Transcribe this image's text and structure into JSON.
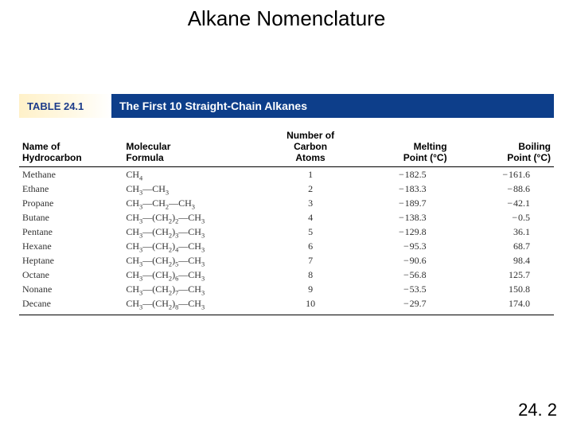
{
  "slide": {
    "title": "Alkane Nomenclature",
    "page_number": "24. 2"
  },
  "table": {
    "label": "TABLE 24.1",
    "caption": "The First 10 Straight-Chain Alkanes",
    "colors": {
      "banner_bg": "#0d3e8a",
      "banner_text": "#ffffff",
      "tab_gradient_start": "#fff1c9",
      "tab_gradient_end": "#ffffff",
      "tab_text": "#1b3b8a",
      "body_text": "#2f2f2f",
      "rule": "#000000",
      "page_bg": "#ffffff"
    },
    "fonts": {
      "heading_family": "Arial",
      "body_family": "Times New Roman",
      "heading_size_pt": 12,
      "body_size_pt": 12,
      "title_size_pt": 20
    },
    "columns": [
      {
        "key": "name",
        "header": "Name of\nHydrocarbon",
        "align": "left"
      },
      {
        "key": "formula",
        "header": "Molecular\nFormula",
        "align": "left"
      },
      {
        "key": "carbons",
        "header": "Number of\nCarbon\nAtoms",
        "align": "center"
      },
      {
        "key": "mp",
        "header": "Melting\nPoint (°C)",
        "align": "right"
      },
      {
        "key": "bp",
        "header": "Boiling\nPoint (°C)",
        "align": "right"
      }
    ],
    "rows": [
      {
        "name": "Methane",
        "formula": "CH4",
        "carbons": 1,
        "mp": -182.5,
        "bp": -161.6
      },
      {
        "name": "Ethane",
        "formula": "CH3—CH3",
        "carbons": 2,
        "mp": -183.3,
        "bp": -88.6
      },
      {
        "name": "Propane",
        "formula": "CH3—CH2—CH3",
        "carbons": 3,
        "mp": -189.7,
        "bp": -42.1
      },
      {
        "name": "Butane",
        "formula": "CH3—(CH2)2—CH3",
        "carbons": 4,
        "mp": -138.3,
        "bp": -0.5
      },
      {
        "name": "Pentane",
        "formula": "CH3—(CH2)3—CH3",
        "carbons": 5,
        "mp": -129.8,
        "bp": 36.1
      },
      {
        "name": "Hexane",
        "formula": "CH3—(CH2)4—CH3",
        "carbons": 6,
        "mp": -95.3,
        "bp": 68.7
      },
      {
        "name": "Heptane",
        "formula": "CH3—(CH2)5—CH3",
        "carbons": 7,
        "mp": -90.6,
        "bp": 98.4
      },
      {
        "name": "Octane",
        "formula": "CH3—(CH2)6—CH3",
        "carbons": 8,
        "mp": -56.8,
        "bp": 125.7
      },
      {
        "name": "Nonane",
        "formula": "CH3—(CH2)7—CH3",
        "carbons": 9,
        "mp": -53.5,
        "bp": 150.8
      },
      {
        "name": "Decane",
        "formula": "CH3—(CH2)8—CH3",
        "carbons": 10,
        "mp": -29.7,
        "bp": 174.0
      }
    ]
  }
}
